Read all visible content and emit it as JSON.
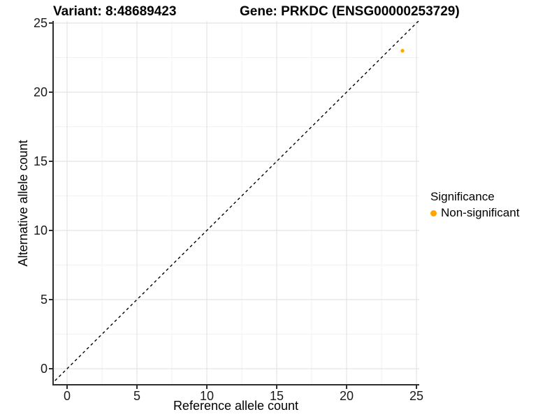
{
  "chart_data": {
    "type": "scatter",
    "title_left": "Variant: 8:48689423",
    "title_right": "Gene: PRKDC (ENSG00000253729)",
    "xlabel": "Reference allele count",
    "ylabel": "Alternative allele count",
    "xlim": [
      0,
      25
    ],
    "ylim": [
      0,
      25
    ],
    "x_ticks": [
      0,
      5,
      10,
      15,
      20,
      25
    ],
    "y_ticks": [
      0,
      5,
      10,
      15,
      20,
      25
    ],
    "x_minor_ticks": [
      2.5,
      7.5,
      12.5,
      17.5,
      22.5
    ],
    "y_minor_ticks": [
      2.5,
      7.5,
      12.5,
      17.5,
      22.5
    ],
    "grid": true,
    "legend_position": "right",
    "series": [
      {
        "name": "Non-significant",
        "color": "#FFA500",
        "points": [
          {
            "x": 24,
            "y": 23
          }
        ]
      }
    ],
    "reference_line": {
      "type": "identity",
      "slope": 1,
      "intercept": 0,
      "style": "dashed",
      "color": "#000000"
    },
    "legend": {
      "title": "Significance",
      "items": [
        {
          "label": "Non-significant",
          "color": "#FFA500"
        }
      ]
    }
  },
  "colors": {
    "background": "#FFFFFF",
    "grid_major": "#E4E4E4",
    "grid_minor": "#F2F2F2",
    "axis_line": "#2E2E2E",
    "tick_text": "#1A1A1A",
    "point": "#FFA500"
  }
}
